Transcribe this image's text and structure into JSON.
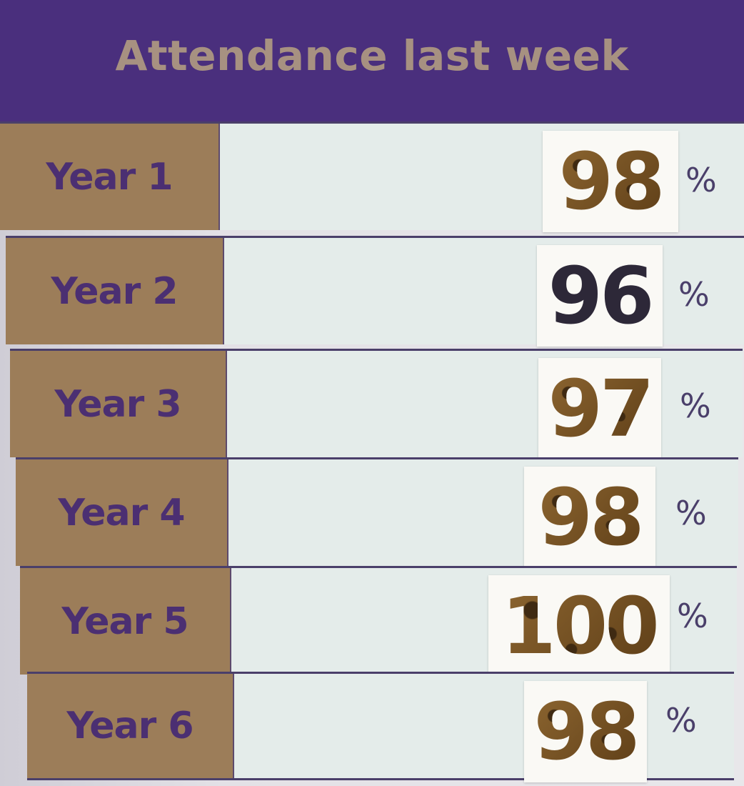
{
  "header": {
    "title": "Attendance last week"
  },
  "rows": [
    {
      "label": "Year 1",
      "value": "98",
      "unit": "%",
      "style": "leopard"
    },
    {
      "label": "Year 2",
      "value": "96",
      "unit": "%",
      "style": "dark"
    },
    {
      "label": "Year 3",
      "value": "97",
      "unit": "%",
      "style": "leopard"
    },
    {
      "label": "Year 4",
      "value": "98",
      "unit": "%",
      "style": "leopard"
    },
    {
      "label": "Year 5",
      "value": "100",
      "unit": "%",
      "style": "leopard"
    },
    {
      "label": "Year 6",
      "value": "98",
      "unit": "%",
      "style": "leopard"
    }
  ],
  "colors": {
    "header_bg": "#4a2f7d",
    "header_text": "#a79181",
    "label_bg": "#9c7d59",
    "label_text": "#4b2f72",
    "value_bg": "#e4ecea"
  }
}
